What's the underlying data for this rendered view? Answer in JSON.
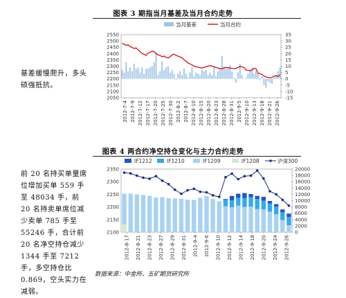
{
  "chart1": {
    "title": "图表 3  期指当月基差及当月合约走势",
    "legend": {
      "bar": "当月基差",
      "line": "当月合约"
    },
    "colors": {
      "bar": "#9ec4e8",
      "line": "#cc1111"
    },
    "side_note": "基差缓慢爬升，多头硕强抵抗。",
    "chart_data": {
      "type": "bar+line",
      "title": "",
      "x_tick_labels": [
        "2012-7-4",
        "2012-7-9",
        "2012-7-12",
        "2012-7-17",
        "2012-7-20",
        "2012-7-25",
        "2012-7-30",
        "2012-8-2",
        "2012-8-7",
        "2012-8-10",
        "2012-8-15",
        "2012-8-20",
        "2012-8-23",
        "2012-8-28",
        "2012-8-31",
        "2012-9-5",
        "2012-9-10",
        "2012-9-13",
        "2012-9-18",
        "2012-9-21",
        "2012-9-26"
      ],
      "left_axis": {
        "ticks": [
          2050,
          2100,
          2150,
          2200,
          2250,
          2300,
          2350,
          2400,
          2450,
          2500,
          2550
        ],
        "ylim": [
          2050,
          2550
        ]
      },
      "right_axis": {
        "ticks": [
          -15,
          -10,
          -5,
          0,
          5,
          10,
          15,
          20,
          25,
          30,
          35
        ],
        "ylim": [
          -15,
          35
        ]
      },
      "series": [
        {
          "name": "当月基差",
          "axis": "right",
          "kind": "bar",
          "values": [
            7,
            5,
            13,
            6,
            9,
            6,
            12,
            8,
            9,
            5,
            9,
            4,
            8,
            8,
            9,
            10,
            13,
            21,
            3,
            6,
            14,
            7,
            9,
            10,
            5,
            7,
            4,
            -1,
            4,
            6,
            3,
            8,
            4,
            1,
            5,
            9,
            2,
            5,
            4,
            3,
            7,
            6,
            7,
            3,
            5,
            3,
            9,
            2,
            6,
            8,
            18,
            10,
            8,
            9,
            11,
            6,
            1,
            -3,
            5,
            12,
            3,
            0,
            1,
            4,
            7,
            9,
            4,
            6,
            5,
            -1,
            2,
            -5,
            -7,
            -2,
            -3,
            -4,
            1,
            3,
            6,
            9
          ]
        },
        {
          "name": "当月合约",
          "axis": "left",
          "kind": "line",
          "values": [
            2480,
            2475,
            2465,
            2470,
            2455,
            2450,
            2440,
            2445,
            2430,
            2415,
            2400,
            2395,
            2385,
            2405,
            2410,
            2420,
            2415,
            2400,
            2390,
            2385,
            2375,
            2380,
            2370,
            2365,
            2375,
            2390,
            2395,
            2385,
            2380,
            2372,
            2368,
            2350,
            2340,
            2325,
            2318,
            2310,
            2300,
            2295,
            2292,
            2288,
            2285,
            2290,
            2295,
            2300,
            2305,
            2300,
            2295,
            2290,
            2285,
            2280,
            2282,
            2285,
            2290,
            2288,
            2286,
            2283,
            2280,
            2282,
            2290,
            2298,
            2295,
            2290,
            2270,
            2268,
            2265,
            2270,
            2283,
            2280,
            2245,
            2240,
            2235,
            2222,
            2215,
            2210,
            2208,
            2212,
            2220,
            2225,
            2218,
            2230
          ]
        }
      ]
    }
  },
  "chart2": {
    "title": "图表 4  两合约净空持仓变化与主力合约走势",
    "legend": [
      {
        "name": "IF1212",
        "color": "#2255cc"
      },
      {
        "name": "IF1210",
        "color": "#33aaee"
      },
      {
        "name": "IF1209",
        "color": "#a8d2f2"
      },
      {
        "name": "IF1208",
        "color": "#cfeacf"
      },
      {
        "name": "沪深300",
        "color": "#1a2a80"
      }
    ],
    "side_note": "前 20 名持买单量席位增加买单 559 手至 48034 手，前 20 名持卖单席位减少卖单 785 手至 55246 手，合计前 20 名净空持仓减少 1344 手至 7212 手，多空持仓比 0.869，空头实力在减弱。",
    "chart_data": {
      "type": "stacked-bar+line",
      "title": "",
      "x_tick_labels": [
        "2012-8-17",
        "2012-8-21",
        "2012-8-23",
        "2012-8-27",
        "2012-8-29",
        "2012-8-31",
        "2012-9-4",
        "2012-9-6",
        "2012-9-10",
        "2012-9-12",
        "2012-9-14",
        "2012-9-18",
        "2012-9-20",
        "2012-9-24",
        "2012-9-26"
      ],
      "left_axis": {
        "ticks": [
          2100,
          2150,
          2200,
          2250,
          2300,
          2350
        ],
        "ylim": [
          2100,
          2350
        ]
      },
      "right_axis": {
        "ticks": [
          0,
          2000,
          4000,
          6000,
          8000,
          10000,
          12000,
          14000,
          16000,
          18000,
          20000
        ],
        "ylim": [
          0,
          20000
        ]
      },
      "series": [
        {
          "name": "IF1208",
          "axis": "right",
          "values": [
            2500,
            0,
            0,
            0,
            0,
            0,
            0,
            0,
            0,
            0,
            0,
            0,
            0,
            0,
            0,
            0,
            0,
            0,
            0,
            0,
            0,
            0,
            0,
            0,
            0,
            0,
            0
          ]
        },
        {
          "name": "IF1209",
          "axis": "right",
          "values": [
            9700,
            12200,
            12000,
            11800,
            11500,
            11000,
            11100,
            10800,
            10700,
            10600,
            10300,
            10200,
            10900,
            11500,
            10500,
            9800,
            8200,
            7900,
            8400,
            8000,
            8100,
            7300,
            7200,
            6500,
            5700,
            3800,
            2200
          ]
        },
        {
          "name": "IF1210",
          "axis": "right",
          "values": [
            0,
            0,
            0,
            0,
            0,
            0,
            0,
            0,
            0,
            0,
            0,
            0,
            0,
            0,
            0,
            0,
            2000,
            2200,
            2500,
            2800,
            3000,
            3200,
            2800,
            2600,
            2400,
            2500,
            2600
          ]
        },
        {
          "name": "IF1212",
          "axis": "right",
          "values": [
            0,
            0,
            0,
            0,
            0,
            0,
            0,
            0,
            0,
            0,
            0,
            0,
            0,
            0,
            0,
            0,
            300,
            1400,
            1300,
            1600,
            1000,
            1000,
            1200,
            800,
            800,
            900,
            1100
          ]
        },
        {
          "name": "沪深300",
          "axis": "left",
          "kind": "line",
          "values": [
            2336,
            2333,
            2324,
            2316,
            2312,
            2322,
            2304,
            2290,
            2268,
            2252,
            2266,
            2272,
            2260,
            2258,
            2246,
            2240,
            2318,
            2332,
            2310,
            2322,
            2324,
            2344,
            2313,
            2262,
            2250,
            2228,
            2205
          ]
        }
      ]
    }
  },
  "source": "数据来源：中金所、五矿期货研究所"
}
